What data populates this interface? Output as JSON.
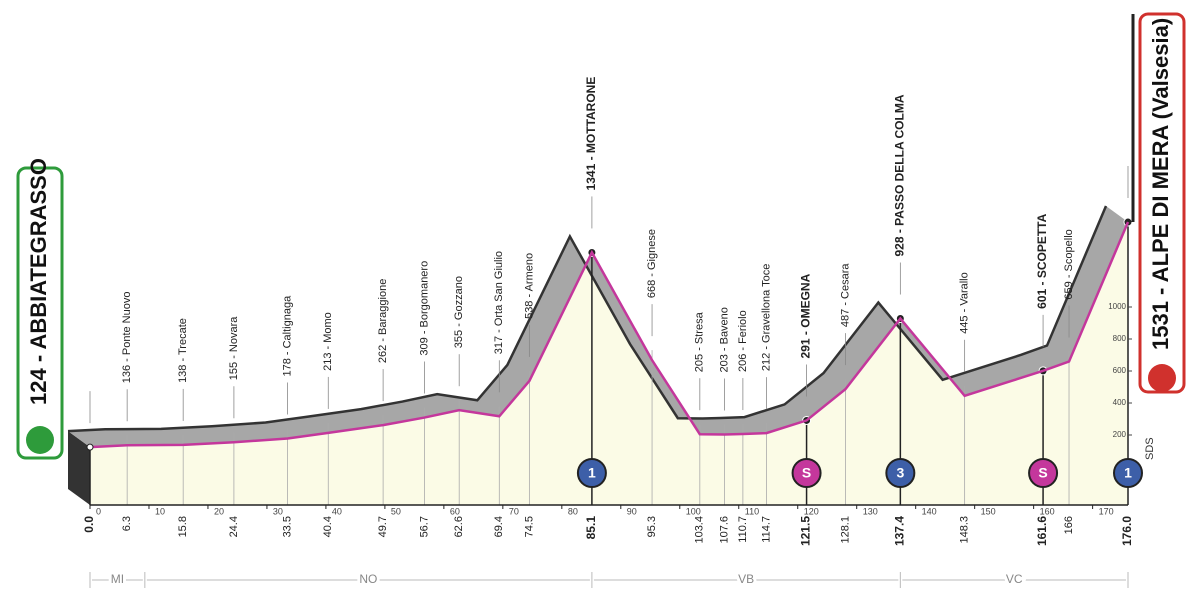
{
  "chart_data": {
    "type": "area",
    "start": "124 - ABBIATEGRASSO",
    "finish": "1531 - ALPE DI MERA (Valsesia)",
    "logo": "SDS",
    "xlim": [
      0,
      176
    ],
    "xticks": [
      0,
      10,
      20,
      30,
      40,
      50,
      60,
      70,
      80,
      90,
      100,
      110,
      120,
      130,
      140,
      150,
      160,
      170
    ],
    "ylim": [
      0,
      1600
    ],
    "yticks": [
      200,
      400,
      600,
      800,
      1000
    ],
    "line_color": "#c4379c",
    "waypoints": [
      {
        "name": "124 - ABBIATEGRASSO",
        "km": {
          "value": 0,
          "label": "0.0"
        },
        "alt": 124,
        "bold": true
      },
      {
        "name": "136 - Ponte Nuovo",
        "km": 6.3,
        "alt": 136
      },
      {
        "name": "138 - Trecate",
        "km": 15.8,
        "alt": 138
      },
      {
        "name": "155 - Novara",
        "km": 24.4,
        "alt": 155
      },
      {
        "name": "178 - Caltignaga",
        "km": 33.5,
        "alt": 178
      },
      {
        "name": "213 - Momo",
        "km": 40.4,
        "alt": 213
      },
      {
        "name": "262 - Baraggione",
        "km": 49.7,
        "alt": 262
      },
      {
        "name": "309 - Borgomanero",
        "km": 56.7,
        "alt": 309
      },
      {
        "name": "355 - Gozzano",
        "km": 62.6,
        "alt": 355
      },
      {
        "name": "317 - Orta San Giulio",
        "km": 69.4,
        "alt": 317
      },
      {
        "name": "538 - Armeno",
        "km": 74.5,
        "alt": 538
      },
      {
        "name": "1341 - MOTTARONE",
        "km": 85.1,
        "alt": 1341,
        "bold": true,
        "marker": {
          "text": "1",
          "color": "#3d5fa8"
        }
      },
      {
        "name": "668 - Gignese",
        "km": 95.3,
        "alt": 668
      },
      {
        "name": "205 - Stresa",
        "km": 103.4,
        "alt": 205
      },
      {
        "name": "203 - Baveno",
        "km": 107.6,
        "alt": 203
      },
      {
        "name": "206 - Feriolo",
        "km": 110.7,
        "alt": 206
      },
      {
        "name": "212 - Gravellona Toce",
        "km": 114.7,
        "alt": 212
      },
      {
        "name": "291 - OMEGNA",
        "km": 121.5,
        "alt": 291,
        "bold": true,
        "marker": {
          "text": "S",
          "color": "#c4379c"
        }
      },
      {
        "name": "487 - Cesara",
        "km": 128.1,
        "alt": 487
      },
      {
        "name": "928 - PASSO DELLA COLMA",
        "km": 137.4,
        "alt": 928,
        "bold": true,
        "marker": {
          "text": "3",
          "color": "#3d5fa8"
        }
      },
      {
        "name": "445 - Varallo",
        "km": 148.3,
        "alt": 445
      },
      {
        "name": "601 - SCOPETTA",
        "km": 161.6,
        "alt": 601,
        "bold": true,
        "marker": {
          "text": "S",
          "color": "#c4379c"
        }
      },
      {
        "name": "659 - Scopello",
        "km": 166.0,
        "alt": 659
      },
      {
        "name": "1531 - ALPE DI MERA (Valsesia)",
        "km": {
          "value": 176,
          "label": "176.0"
        },
        "alt": 1531,
        "bold": true,
        "marker": {
          "text": "1",
          "color": "#3d5fa8"
        }
      }
    ],
    "provinces": [
      {
        "name": "MI",
        "from": 0,
        "to": 9.3
      },
      {
        "name": "NO",
        "from": 9.3,
        "to": 85.1
      },
      {
        "name": "VB",
        "from": 85.1,
        "to": 137.4
      },
      {
        "name": "VC",
        "from": 137.4,
        "to": 176
      }
    ]
  }
}
